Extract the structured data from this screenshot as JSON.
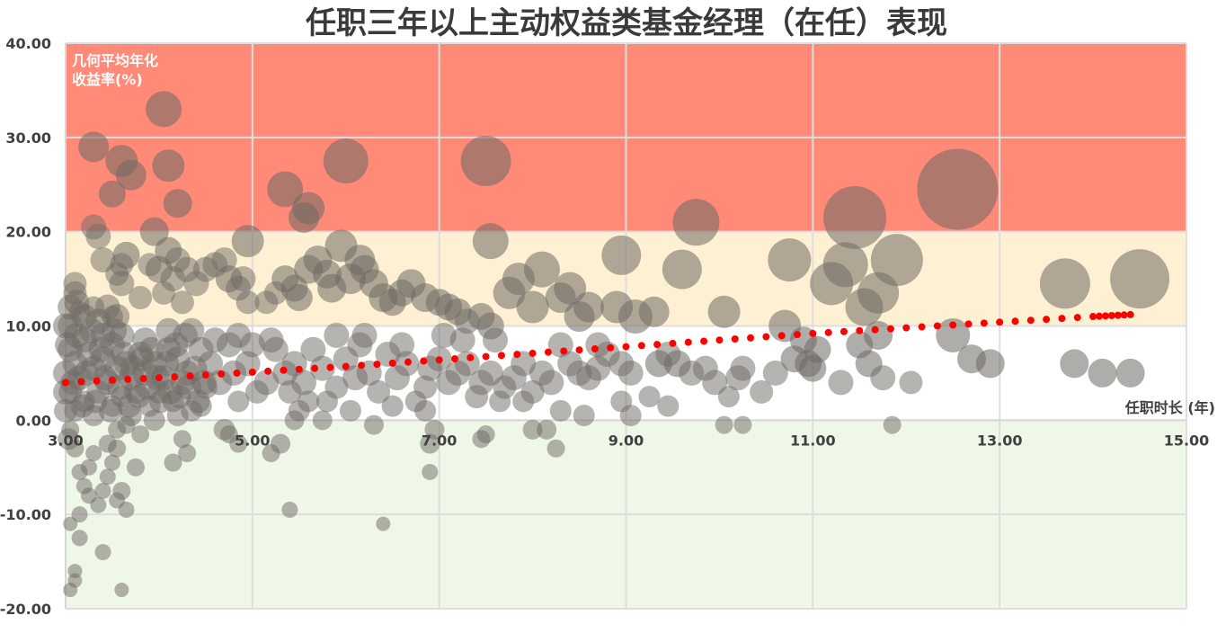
{
  "chart_data": {
    "type": "scatter",
    "title": "任职三年以上主动权益类基金经理（在任）表现",
    "xlabel": "任职时长 (年)",
    "ylabel": [
      "几何平均年化",
      "收益率(%)"
    ],
    "xlim": [
      3,
      15
    ],
    "ylim": [
      -20,
      40
    ],
    "x_ticks": [
      "3.00",
      "5.00",
      "7.00",
      "9.00",
      "11.00",
      "13.00",
      "15.00"
    ],
    "y_ticks": [
      "40.00",
      "30.00",
      "20.00",
      "10.00",
      "0.00",
      "-10.00",
      "-20.00"
    ],
    "grid": true,
    "bands": [
      {
        "from": 20,
        "to": 40,
        "color": "#ff8a78"
      },
      {
        "from": 10,
        "to": 20,
        "color": "#fef0d2"
      },
      {
        "from": 0,
        "to": 10,
        "color": "#ffffff"
      },
      {
        "from": -20,
        "to": 0,
        "color": "#eff7e6"
      }
    ],
    "bubble_color": "#6e6a64",
    "trend_color": "#ff0000",
    "trendline": [
      [
        3.0,
        4.0
      ],
      [
        4.0,
        4.5
      ],
      [
        5.0,
        5.1
      ],
      [
        6.0,
        5.7
      ],
      [
        7.0,
        6.4
      ],
      [
        8.0,
        7.1
      ],
      [
        9.0,
        7.8
      ],
      [
        10.0,
        8.5
      ],
      [
        11.0,
        9.2
      ],
      [
        12.0,
        9.8
      ],
      [
        13.0,
        10.4
      ],
      [
        14.0,
        11.0
      ],
      [
        14.4,
        11.2
      ]
    ],
    "points": [
      [
        4.05,
        33,
        20
      ],
      [
        3.3,
        29,
        17
      ],
      [
        3.6,
        27.5,
        18
      ],
      [
        4.1,
        27,
        18
      ],
      [
        3.7,
        26,
        17
      ],
      [
        3.5,
        24,
        15
      ],
      [
        4.2,
        23,
        16
      ],
      [
        3.3,
        20.5,
        14
      ],
      [
        3.35,
        19.5,
        14
      ],
      [
        3.4,
        17,
        14
      ],
      [
        3.65,
        17.5,
        15
      ],
      [
        3.6,
        16.5,
        13
      ],
      [
        3.55,
        15.5,
        13
      ],
      [
        3.6,
        14.5,
        14
      ],
      [
        3.1,
        14.5,
        13
      ],
      [
        3.1,
        13.5,
        13
      ],
      [
        3.3,
        12,
        12
      ],
      [
        3.15,
        11.5,
        12
      ],
      [
        3.5,
        11,
        12
      ],
      [
        3.8,
        13,
        13
      ],
      [
        3.9,
        16.5,
        13
      ],
      [
        3.95,
        20,
        16
      ],
      [
        4.0,
        16,
        15
      ],
      [
        4.1,
        18,
        15
      ],
      [
        4.15,
        15,
        14
      ],
      [
        4.2,
        17,
        14
      ],
      [
        4.25,
        12.5,
        13
      ],
      [
        4.05,
        13.5,
        13
      ],
      [
        4.3,
        16,
        14
      ],
      [
        4.4,
        14.5,
        14
      ],
      [
        4.5,
        16,
        14
      ],
      [
        4.6,
        16.5,
        14
      ],
      [
        4.7,
        17,
        14
      ],
      [
        4.75,
        15,
        15
      ],
      [
        4.85,
        14,
        14
      ],
      [
        4.9,
        15,
        14
      ],
      [
        4.95,
        12.5,
        13
      ],
      [
        5.15,
        12.5,
        13
      ],
      [
        5.25,
        13.5,
        13
      ],
      [
        5.35,
        15,
        15
      ],
      [
        5.45,
        14,
        15
      ],
      [
        5.5,
        13,
        15
      ],
      [
        5.6,
        16,
        16
      ],
      [
        5.7,
        17,
        16
      ],
      [
        5.8,
        15.5,
        16
      ],
      [
        5.85,
        14,
        16
      ],
      [
        5.95,
        18.5,
        18
      ],
      [
        6.05,
        15,
        17
      ],
      [
        6.15,
        17,
        17
      ],
      [
        6.2,
        16,
        16
      ],
      [
        6.3,
        14.5,
        16
      ],
      [
        6.4,
        13,
        16
      ],
      [
        6.5,
        12.5,
        15
      ],
      [
        6.6,
        13.5,
        15
      ],
      [
        6.7,
        14.5,
        16
      ],
      [
        6.85,
        13,
        16
      ],
      [
        7.0,
        12.5,
        15
      ],
      [
        7.1,
        12,
        15
      ],
      [
        7.2,
        11.5,
        15
      ],
      [
        7.3,
        10.5,
        14
      ],
      [
        7.45,
        11,
        15
      ],
      [
        7.55,
        10,
        15
      ],
      [
        7.75,
        13.5,
        18
      ],
      [
        7.85,
        15,
        18
      ],
      [
        8.0,
        12,
        18
      ],
      [
        8.1,
        16,
        20
      ],
      [
        8.3,
        13,
        17
      ],
      [
        8.4,
        14,
        18
      ],
      [
        8.5,
        11,
        17
      ],
      [
        8.6,
        12,
        17
      ],
      [
        8.9,
        12,
        18
      ],
      [
        8.95,
        17.5,
        22
      ],
      [
        9.1,
        11,
        19
      ],
      [
        9.3,
        11.5,
        17
      ],
      [
        9.6,
        16,
        22
      ],
      [
        9.75,
        21,
        26
      ],
      [
        10.05,
        11.5,
        18
      ],
      [
        10.7,
        10,
        18
      ],
      [
        10.75,
        17,
        24
      ],
      [
        11.2,
        14.5,
        24
      ],
      [
        11.35,
        16.5,
        25
      ],
      [
        11.45,
        21.5,
        35
      ],
      [
        11.55,
        12,
        21
      ],
      [
        11.7,
        13.5,
        23
      ],
      [
        11.9,
        17,
        29
      ],
      [
        12.55,
        24.5,
        45
      ],
      [
        13.7,
        14.5,
        28
      ],
      [
        14.5,
        15,
        33
      ],
      [
        7.5,
        27.5,
        28
      ],
      [
        7.55,
        19,
        20
      ],
      [
        5.35,
        24.5,
        20
      ],
      [
        5.6,
        22.5,
        18
      ],
      [
        5.55,
        21.5,
        17
      ],
      [
        6.0,
        27.5,
        25
      ],
      [
        4.95,
        19,
        18
      ],
      [
        12.5,
        9,
        19
      ],
      [
        12.7,
        6.5,
        16
      ],
      [
        12.9,
        6,
        16
      ],
      [
        13.8,
        6,
        16
      ],
      [
        14.1,
        5,
        16
      ],
      [
        14.4,
        5,
        16
      ],
      [
        11.3,
        4,
        14
      ],
      [
        11.5,
        8,
        15
      ],
      [
        11.6,
        6,
        15
      ],
      [
        11.75,
        4.5,
        14
      ],
      [
        11.85,
        -0.5,
        10
      ],
      [
        12.05,
        4,
        13
      ],
      [
        11.7,
        9,
        16
      ],
      [
        10.9,
        8.5,
        15
      ],
      [
        10.95,
        6,
        15
      ],
      [
        11.0,
        5.5,
        15
      ],
      [
        11.05,
        7.5,
        15
      ],
      [
        10.8,
        6.5,
        15
      ],
      [
        10.6,
        5,
        14
      ],
      [
        10.45,
        3,
        13
      ],
      [
        10.2,
        4.5,
        14
      ],
      [
        10.25,
        5.5,
        14
      ],
      [
        10.1,
        2.5,
        12
      ],
      [
        10.25,
        -0.5,
        10
      ],
      [
        10.05,
        -0.5,
        10
      ],
      [
        9.95,
        4,
        14
      ],
      [
        9.85,
        5.5,
        14
      ],
      [
        9.7,
        5,
        14
      ],
      [
        9.55,
        6,
        15
      ],
      [
        9.45,
        7,
        14
      ],
      [
        9.35,
        6,
        15
      ],
      [
        9.25,
        2.5,
        12
      ],
      [
        9.45,
        1.5,
        12
      ],
      [
        9.05,
        5,
        14
      ],
      [
        8.95,
        6,
        14
      ],
      [
        8.8,
        7,
        14
      ],
      [
        8.7,
        5.5,
        14
      ],
      [
        8.6,
        4.5,
        14
      ],
      [
        8.5,
        5,
        14
      ],
      [
        8.4,
        6,
        14
      ],
      [
        8.3,
        8,
        14
      ],
      [
        8.2,
        4,
        14
      ],
      [
        8.1,
        5,
        14
      ],
      [
        8.0,
        3,
        13
      ],
      [
        7.9,
        2,
        12
      ],
      [
        7.9,
        6,
        14
      ],
      [
        7.8,
        4.5,
        14
      ],
      [
        7.7,
        3.5,
        13
      ],
      [
        7.65,
        2,
        12
      ],
      [
        7.55,
        5,
        14
      ],
      [
        7.45,
        4,
        14
      ],
      [
        7.4,
        2.5,
        13
      ],
      [
        7.3,
        6,
        14
      ],
      [
        7.2,
        5,
        14
      ],
      [
        7.1,
        4,
        14
      ],
      [
        7.0,
        6.5,
        14
      ],
      [
        6.9,
        5.5,
        14
      ],
      [
        6.85,
        3.5,
        13
      ],
      [
        6.75,
        2,
        12
      ],
      [
        6.65,
        6,
        14
      ],
      [
        6.55,
        4.5,
        14
      ],
      [
        6.45,
        7,
        14
      ],
      [
        6.35,
        3,
        13
      ],
      [
        6.25,
        5,
        14
      ],
      [
        6.15,
        8,
        14
      ],
      [
        6.1,
        4.5,
        14
      ],
      [
        6.0,
        6.5,
        14
      ],
      [
        5.9,
        3.5,
        13
      ],
      [
        5.8,
        2,
        12
      ],
      [
        5.75,
        5.5,
        14
      ],
      [
        5.65,
        7.5,
        14
      ],
      [
        5.55,
        4,
        14
      ],
      [
        5.5,
        1,
        12
      ],
      [
        5.45,
        6,
        14
      ],
      [
        5.4,
        3,
        13
      ],
      [
        5.35,
        5,
        14
      ],
      [
        5.25,
        7.5,
        14
      ],
      [
        5.15,
        4,
        14
      ],
      [
        5.05,
        3,
        13
      ],
      [
        4.95,
        6,
        14
      ],
      [
        4.85,
        2,
        12
      ],
      [
        4.8,
        5,
        14
      ],
      [
        4.75,
        8,
        14
      ],
      [
        4.65,
        4,
        14
      ],
      [
        4.55,
        6,
        14
      ],
      [
        4.5,
        3.5,
        13
      ],
      [
        4.45,
        7.5,
        14
      ],
      [
        4.35,
        1,
        12
      ],
      [
        4.3,
        5,
        14
      ],
      [
        4.25,
        4,
        14
      ],
      [
        4.2,
        6.5,
        14
      ],
      [
        4.15,
        2,
        12
      ],
      [
        4.1,
        7.5,
        14
      ],
      [
        4.05,
        4.5,
        14
      ],
      [
        4.0,
        3,
        13
      ],
      [
        3.95,
        6,
        14
      ],
      [
        3.9,
        1.5,
        12
      ],
      [
        3.85,
        5,
        14
      ],
      [
        3.8,
        7,
        14
      ],
      [
        3.75,
        3,
        13
      ],
      [
        3.7,
        4.5,
        14
      ],
      [
        3.65,
        6,
        14
      ],
      [
        3.6,
        2.5,
        12
      ],
      [
        3.55,
        5.5,
        14
      ],
      [
        3.5,
        8,
        14
      ],
      [
        3.45,
        4,
        14
      ],
      [
        3.4,
        6.5,
        14
      ],
      [
        3.35,
        3,
        13
      ],
      [
        3.3,
        5.5,
        14
      ],
      [
        3.25,
        7,
        14
      ],
      [
        3.2,
        2,
        12
      ],
      [
        3.15,
        4.5,
        14
      ],
      [
        3.1,
        6,
        14
      ],
      [
        3.05,
        3,
        13
      ],
      [
        3.05,
        7.5,
        14
      ],
      [
        3.1,
        1,
        12
      ],
      [
        3.2,
        8.5,
        14
      ],
      [
        3.3,
        0.5,
        12
      ],
      [
        3.4,
        9,
        14
      ],
      [
        3.5,
        1.5,
        12
      ],
      [
        3.6,
        9,
        14
      ],
      [
        3.7,
        0.5,
        12
      ],
      [
        3.85,
        8.5,
        14
      ],
      [
        3.95,
        0,
        12
      ],
      [
        4.1,
        9.5,
        14
      ],
      [
        4.2,
        0.5,
        12
      ],
      [
        4.35,
        9.5,
        14
      ],
      [
        4.45,
        1.5,
        12
      ],
      [
        4.6,
        8.5,
        14
      ],
      [
        4.7,
        -1,
        12
      ],
      [
        4.85,
        9,
        14
      ],
      [
        5.0,
        8,
        14
      ],
      [
        5.2,
        8.5,
        14
      ],
      [
        5.3,
        -2.5,
        11
      ],
      [
        5.45,
        0,
        11
      ],
      [
        5.6,
        2,
        12
      ],
      [
        5.75,
        0,
        11
      ],
      [
        5.9,
        9,
        14
      ],
      [
        6.05,
        1,
        12
      ],
      [
        6.2,
        9,
        14
      ],
      [
        6.3,
        -0.5,
        11
      ],
      [
        6.5,
        1.5,
        12
      ],
      [
        6.6,
        8,
        14
      ],
      [
        6.85,
        1,
        12
      ],
      [
        6.9,
        -2.5,
        11
      ],
      [
        6.95,
        -1,
        11
      ],
      [
        7.05,
        9,
        14
      ],
      [
        7.25,
        8.5,
        14
      ],
      [
        7.45,
        -2,
        10
      ],
      [
        7.5,
        -1.5,
        10
      ],
      [
        7.6,
        8.5,
        14
      ],
      [
        8.0,
        -1,
        11
      ],
      [
        8.15,
        -1,
        11
      ],
      [
        8.25,
        -3,
        10
      ],
      [
        8.3,
        1,
        12
      ],
      [
        8.55,
        0.5,
        12
      ],
      [
        8.7,
        8,
        14
      ],
      [
        8.95,
        2,
        12
      ],
      [
        9.05,
        0.5,
        12
      ],
      [
        5.2,
        -3.5,
        10
      ],
      [
        5.4,
        -9.5,
        9
      ],
      [
        6.4,
        -11,
        8
      ],
      [
        6.9,
        -5.5,
        9
      ],
      [
        4.25,
        -2,
        10
      ],
      [
        4.15,
        -4.5,
        10
      ],
      [
        4.3,
        -3.5,
        10
      ],
      [
        3.45,
        -2.5,
        10
      ],
      [
        3.55,
        -3,
        10
      ],
      [
        3.75,
        -5,
        10
      ],
      [
        3.6,
        -7.5,
        10
      ],
      [
        3.65,
        -9.5,
        9
      ],
      [
        3.35,
        -9,
        9
      ],
      [
        3.4,
        -14,
        9
      ],
      [
        3.15,
        -10,
        9
      ],
      [
        3.05,
        -11,
        8
      ],
      [
        3.1,
        -16,
        8
      ],
      [
        3.1,
        -17,
        8
      ],
      [
        3.05,
        -18,
        8
      ],
      [
        3.6,
        -18,
        8
      ],
      [
        3.15,
        -12.5,
        9
      ],
      [
        3.2,
        -7,
        9
      ],
      [
        3.25,
        -5,
        9
      ],
      [
        3.3,
        -3.5,
        9
      ],
      [
        3.45,
        -6,
        9
      ],
      [
        3.5,
        -4.5,
        9
      ],
      [
        3.55,
        -1,
        10
      ],
      [
        3.65,
        -0.5,
        10
      ],
      [
        3.8,
        -1.5,
        10
      ],
      [
        3.1,
        -3,
        10
      ],
      [
        3.05,
        -1,
        10
      ],
      [
        3.15,
        -5.5,
        9
      ],
      [
        3.25,
        -8,
        9
      ],
      [
        3.4,
        -7.5,
        9
      ],
      [
        3.55,
        -8.5,
        9
      ],
      [
        4.75,
        -1.5,
        10
      ],
      [
        4.85,
        -2.5,
        10
      ],
      [
        3.0,
        5,
        14
      ],
      [
        3.0,
        3,
        14
      ],
      [
        3.0,
        1,
        13
      ],
      [
        3.02,
        8,
        14
      ],
      [
        3.03,
        -2,
        12
      ],
      [
        3.05,
        10,
        14
      ],
      [
        3.08,
        4,
        14
      ],
      [
        3.12,
        9,
        14
      ],
      [
        3.18,
        1.5,
        13
      ],
      [
        3.22,
        5,
        14
      ],
      [
        3.28,
        9.5,
        14
      ],
      [
        3.32,
        2,
        13
      ],
      [
        3.38,
        7.5,
        14
      ],
      [
        3.42,
        4.5,
        14
      ],
      [
        3.48,
        1,
        13
      ],
      [
        3.52,
        9.5,
        14
      ],
      [
        3.58,
        3.5,
        14
      ],
      [
        3.62,
        7,
        14
      ],
      [
        3.68,
        1.5,
        13
      ],
      [
        3.72,
        5.5,
        14
      ],
      [
        3.78,
        2.5,
        13
      ],
      [
        3.82,
        6.5,
        14
      ],
      [
        3.88,
        3.5,
        14
      ],
      [
        3.92,
        7.5,
        14
      ],
      [
        3.98,
        4.5,
        14
      ],
      [
        4.02,
        2,
        13
      ],
      [
        4.08,
        6,
        14
      ],
      [
        4.12,
        3,
        14
      ],
      [
        4.18,
        8,
        14
      ],
      [
        4.22,
        2.5,
        13
      ],
      [
        4.28,
        9,
        14
      ],
      [
        4.32,
        3.5,
        14
      ],
      [
        4.38,
        5.5,
        14
      ],
      [
        4.42,
        2,
        13
      ],
      [
        4.48,
        4,
        14
      ],
      [
        3.0,
        10,
        14
      ],
      [
        3.05,
        12,
        14
      ],
      [
        3.12,
        12.5,
        14
      ],
      [
        3.2,
        11,
        14
      ],
      [
        3.35,
        10.5,
        14
      ],
      [
        3.45,
        12,
        14
      ],
      [
        3.55,
        11,
        14
      ]
    ]
  }
}
